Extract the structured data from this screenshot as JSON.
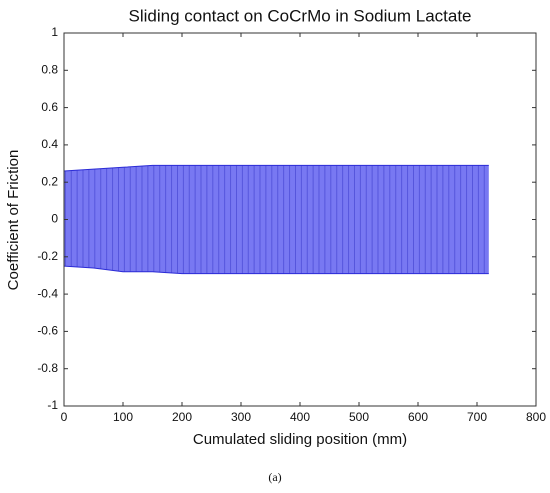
{
  "chart_data": {
    "type": "band",
    "title": "Sliding contact on CoCrMo in Sodium Lactate",
    "x_label": "Cumulated sliding position (mm)",
    "y_label": "Coefficient of Friction",
    "caption": "(a)",
    "x": [
      0,
      50,
      100,
      150,
      200,
      300,
      400,
      500,
      600,
      720
    ],
    "upper": [
      0.26,
      0.27,
      0.28,
      0.29,
      0.29,
      0.29,
      0.29,
      0.29,
      0.29,
      0.29
    ],
    "lower": [
      -0.25,
      -0.26,
      -0.28,
      -0.28,
      -0.29,
      -0.29,
      -0.29,
      -0.29,
      -0.29,
      -0.29
    ],
    "color": "#7878f2",
    "line_color": "#2b2bd6",
    "xlim": [
      0,
      800
    ],
    "xticks": [
      0,
      100,
      200,
      300,
      400,
      500,
      600,
      700,
      800
    ],
    "ylim": [
      -1,
      1
    ],
    "yticks": [
      -1,
      -0.8,
      -0.6,
      -0.4,
      -0.2,
      0,
      0.2,
      0.4,
      0.6,
      0.8,
      1
    ]
  }
}
